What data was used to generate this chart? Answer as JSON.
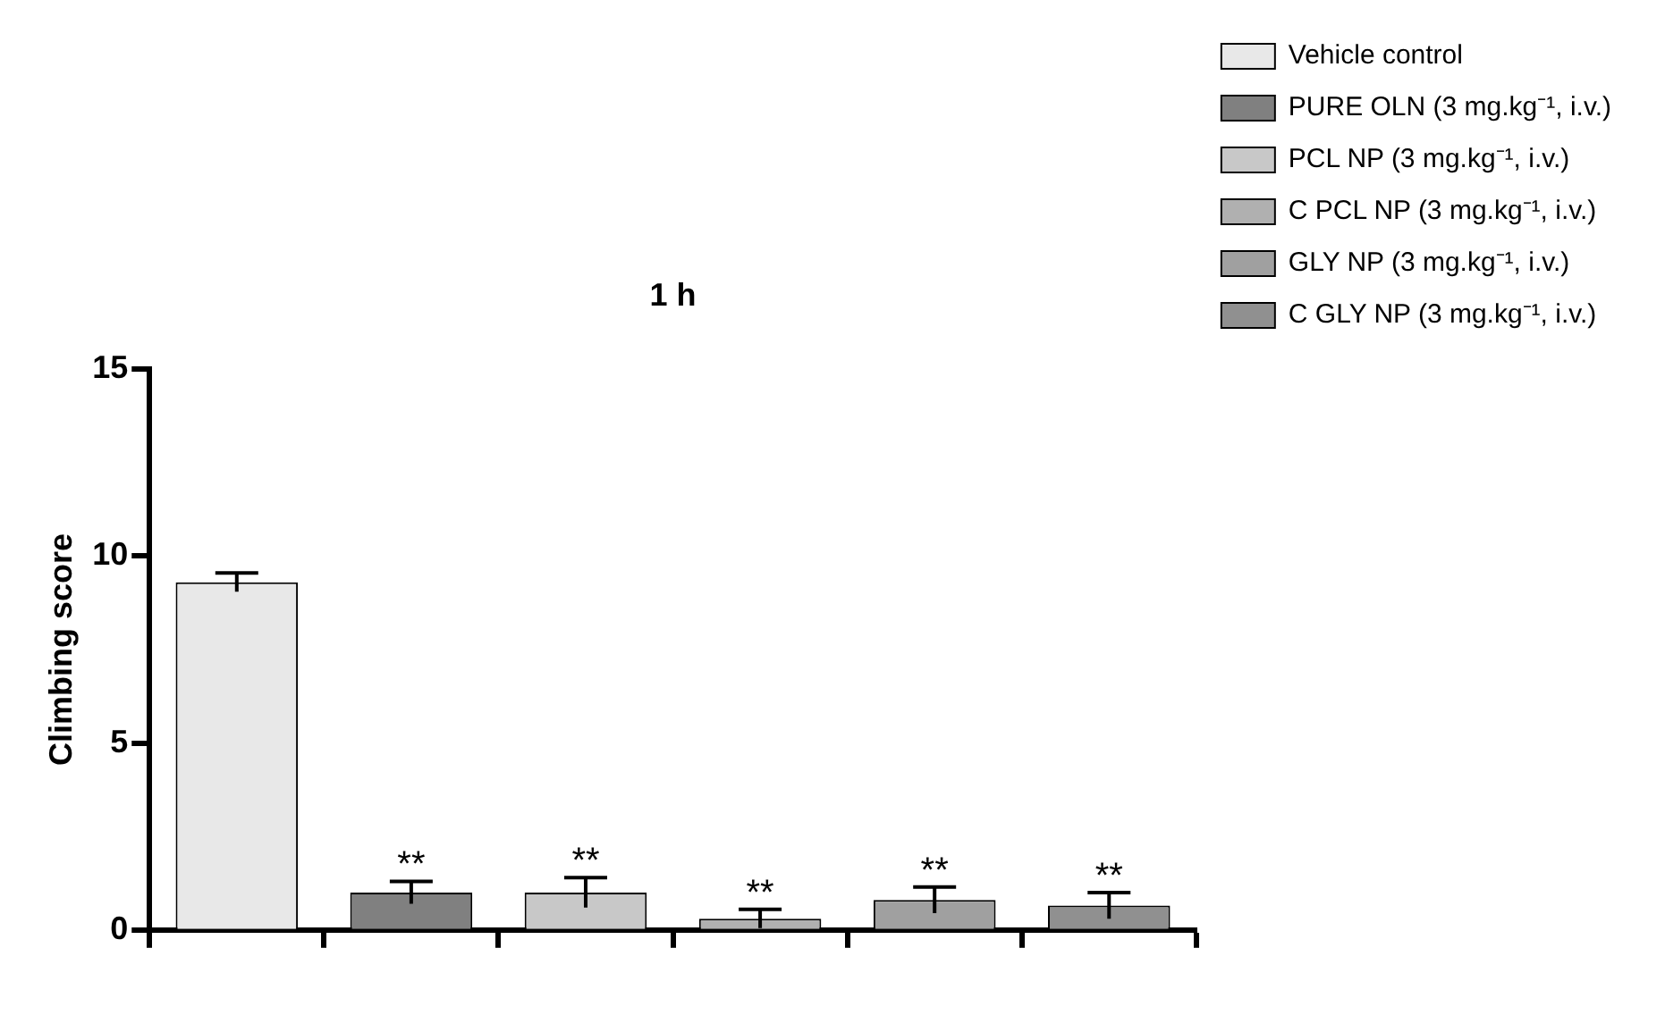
{
  "chart_data": {
    "type": "bar",
    "title": "1 h",
    "ylabel": "Climbing score",
    "categories": [
      null,
      null,
      null,
      null,
      null,
      null
    ],
    "series": [
      {
        "name": "Vehicle control",
        "color": "#e8e8e8",
        "values": [
          9.3,
          null,
          null,
          null,
          null,
          null
        ],
        "errors": [
          0.25,
          null,
          null,
          null,
          null,
          null
        ]
      },
      {
        "name": "PURE OLN (3 mg.kg⁻¹, i.v.)",
        "color": "#808080",
        "values": [
          null,
          1.0,
          null,
          null,
          null,
          null
        ],
        "errors": [
          null,
          0.3,
          null,
          null,
          null,
          null
        ],
        "value_labels": [
          null,
          "**",
          null,
          null,
          null,
          null
        ]
      },
      {
        "name": "PCL NP (3 mg.kg⁻¹, i.v.)",
        "color": "#c8c8c8",
        "values": [
          null,
          null,
          1.0,
          null,
          null,
          null
        ],
        "errors": [
          null,
          null,
          0.4,
          null,
          null,
          null
        ],
        "value_labels": [
          null,
          null,
          "**",
          null,
          null,
          null
        ]
      },
      {
        "name": "C PCL NP (3 mg.kg⁻¹, i.v.)",
        "color": "#b0b0b0",
        "values": [
          null,
          null,
          null,
          0.3,
          null,
          null
        ],
        "errors": [
          null,
          null,
          null,
          0.25,
          null,
          null
        ],
        "value_labels": [
          null,
          null,
          null,
          "**",
          null,
          null
        ]
      },
      {
        "name": "GLY NP (3 mg.kg⁻¹, i.v.)",
        "color": "#a0a0a0",
        "values": [
          null,
          null,
          null,
          null,
          0.8,
          null
        ],
        "errors": [
          null,
          null,
          null,
          null,
          0.35,
          null
        ],
        "value_labels": [
          null,
          null,
          null,
          null,
          "**",
          null
        ]
      },
      {
        "name": "C GLY NP (3 mg.kg⁻¹, i.v.)",
        "color": "#909090",
        "values": [
          null,
          null,
          null,
          null,
          null,
          0.65
        ],
        "errors": [
          null,
          null,
          null,
          null,
          null,
          0.35
        ],
        "value_labels": [
          null,
          null,
          null,
          null,
          null,
          "**"
        ]
      }
    ],
    "ylim": [
      0,
      15
    ],
    "yticks": [
      0,
      5,
      10,
      15
    ],
    "grid": false,
    "legend": "top right",
    "tick_labels": "y"
  }
}
